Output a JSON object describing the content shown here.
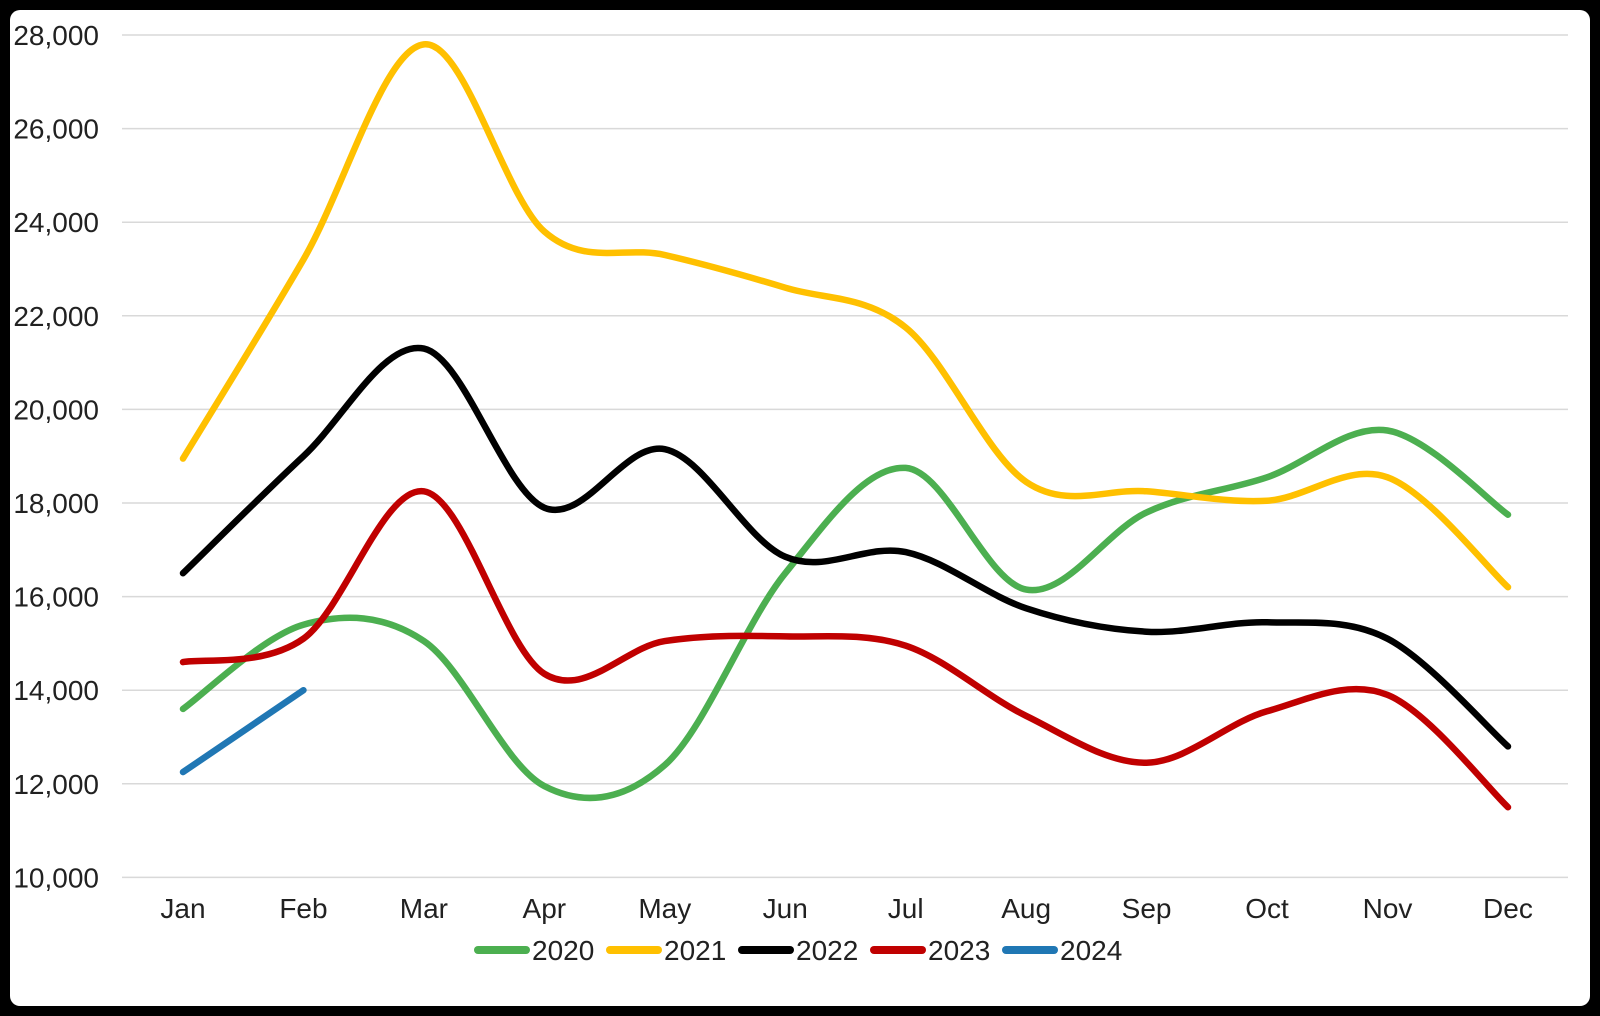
{
  "chart_data": {
    "type": "line",
    "title": "",
    "xlabel": "",
    "ylabel": "",
    "categories": [
      "Jan",
      "Feb",
      "Mar",
      "Apr",
      "May",
      "Jun",
      "Jul",
      "Aug",
      "Sep",
      "Oct",
      "Nov",
      "Dec"
    ],
    "y_axis": {
      "min": 10000,
      "max": 28000,
      "step": 2000,
      "tick_labels": [
        "10,000",
        "12,000",
        "14,000",
        "16,000",
        "18,000",
        "20,000",
        "22,000",
        "24,000",
        "26,000",
        "28,000"
      ]
    },
    "grid": "horizontal-only",
    "gridline_color": "#d9d9d9",
    "background_color": "#ffffff",
    "frame_color": "#000000",
    "text_color": "#212121",
    "legend_position": "bottom",
    "line_style": "smooth",
    "series": [
      {
        "name": "2020",
        "color": "#4CAF50",
        "values": [
          13600,
          15400,
          15050,
          11950,
          12400,
          16500,
          18750,
          16150,
          17800,
          18550,
          19550,
          17750
        ]
      },
      {
        "name": "2021",
        "color": "#FFC000",
        "values": [
          18950,
          23200,
          27800,
          23800,
          23300,
          22600,
          21750,
          18450,
          18250,
          18050,
          18550,
          16200
        ]
      },
      {
        "name": "2022",
        "color": "#000000",
        "values": [
          16500,
          19000,
          21300,
          17900,
          19150,
          16850,
          16950,
          15750,
          15250,
          15450,
          15100,
          12800
        ]
      },
      {
        "name": "2023",
        "color": "#C00000",
        "values": [
          14600,
          15100,
          18250,
          14350,
          15050,
          15150,
          14950,
          13450,
          12450,
          13550,
          13900,
          11500
        ]
      },
      {
        "name": "2024",
        "color": "#2077B4",
        "values": [
          12250,
          14000
        ]
      }
    ]
  }
}
